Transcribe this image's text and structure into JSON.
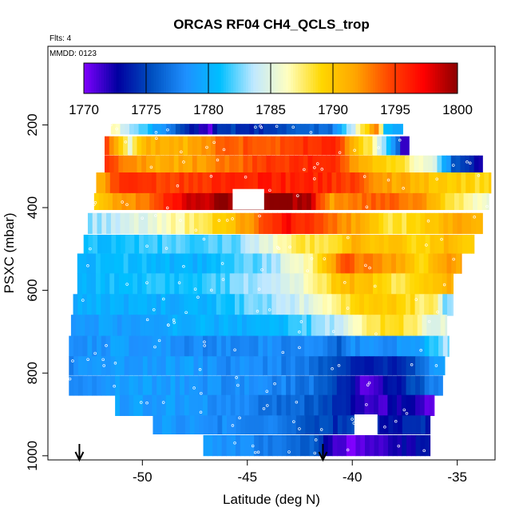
{
  "chart_data": {
    "type": "heatmap",
    "title": "ORCAS RF04 CH4_QCLS_trop",
    "annotations": [
      "Flts: 4",
      "MMDD: 0123"
    ],
    "xlabel": "Latitude (deg N)",
    "ylabel": "PSXC (mbar)",
    "xlim": [
      -54.5,
      -33.2
    ],
    "ylim": [
      1010,
      10
    ],
    "x_ticks": [
      -50,
      -45,
      -40,
      -35
    ],
    "y_ticks": [
      200,
      400,
      600,
      800,
      1000
    ],
    "colorbar": {
      "min": 1770,
      "max": 1800,
      "ticks": [
        1770,
        1775,
        1780,
        1785,
        1790,
        1795,
        1800
      ],
      "colors": [
        "#8000ff",
        "#0000a0",
        "#0050c0",
        "#1e90ff",
        "#00bfff",
        "#c0e8ff",
        "#ffffc0",
        "#ffd700",
        "#ffa500",
        "#ff4500",
        "#ff0000",
        "#8b0000"
      ]
    },
    "bands": [
      {
        "p": 210,
        "dp": 25,
        "x0": -51.5,
        "x1": -37.6,
        "segs": [
          [
            -51.5,
            1786
          ],
          [
            -51.3,
            1786
          ],
          [
            -46.8,
            1771
          ],
          [
            -46.2,
            1775
          ],
          [
            -44.5,
            1774
          ],
          [
            -41,
            1777
          ],
          [
            -39.2,
            1790
          ],
          [
            -38.8,
            1794
          ],
          [
            -38.4,
            1780
          ]
        ]
      },
      {
        "p": 250,
        "dp": 45,
        "x0": -51.8,
        "x1": -37.3,
        "segs": [
          [
            -51.8,
            1796
          ],
          [
            -50.6,
            1786
          ],
          [
            -49.8,
            1791
          ],
          [
            -48,
            1791
          ],
          [
            -46,
            1794
          ],
          [
            -44,
            1794
          ],
          [
            -41,
            1796
          ],
          [
            -39.2,
            1788
          ],
          [
            -38.8,
            1785
          ],
          [
            -38,
            1779
          ],
          [
            -37.6,
            1772
          ]
        ]
      },
      {
        "p": 295,
        "dp": 42,
        "x0": -51.8,
        "x1": -33.8,
        "segs": [
          [
            -51.8,
            1795
          ],
          [
            -49.5,
            1791
          ],
          [
            -47,
            1792
          ],
          [
            -44,
            1795
          ],
          [
            -41,
            1796
          ],
          [
            -39.5,
            1791
          ],
          [
            -37.5,
            1788
          ],
          [
            -36,
            1784
          ],
          [
            -35.2,
            1776
          ],
          [
            -34.2,
            1773
          ]
        ]
      },
      {
        "p": 340,
        "dp": 50,
        "x0": -52.2,
        "x1": -33.4,
        "segs": [
          [
            -52.2,
            1791
          ],
          [
            -51,
            1795
          ],
          [
            -48,
            1795
          ],
          [
            -45,
            1796
          ],
          [
            -42,
            1796
          ],
          [
            -40,
            1795
          ],
          [
            -38.5,
            1792
          ],
          [
            -36,
            1790
          ],
          [
            -34.5,
            1789
          ]
        ]
      },
      {
        "p": 385,
        "dp": 40,
        "x0": -52.3,
        "x1": -33.5,
        "segs": [
          [
            -52.3,
            1789
          ],
          [
            -51,
            1792
          ],
          [
            -49.3,
            1794
          ],
          [
            -48,
            1798
          ],
          [
            -46.7,
            1799
          ],
          [
            -45.5,
            1800
          ],
          [
            -44,
            1800
          ],
          [
            -42,
            1799
          ],
          [
            -41.6,
            1795
          ],
          [
            -41,
            1792
          ],
          [
            -39,
            1794
          ],
          [
            -37,
            1793
          ],
          [
            -35.5,
            1789
          ],
          [
            -34.2,
            1786
          ]
        ]
      },
      {
        "p": 438,
        "dp": 50,
        "x0": -52.6,
        "x1": -33.8,
        "segs": [
          [
            -52.6,
            1783
          ],
          [
            -51,
            1784
          ],
          [
            -49,
            1786
          ],
          [
            -47,
            1788
          ],
          [
            -45,
            1792
          ],
          [
            -44,
            1795
          ],
          [
            -43,
            1797
          ],
          [
            -41.5,
            1794
          ],
          [
            -39.5,
            1791
          ],
          [
            -38,
            1788
          ],
          [
            -36,
            1790
          ],
          [
            -35,
            1792
          ],
          [
            -34.2,
            1791
          ]
        ]
      },
      {
        "p": 488,
        "dp": 45,
        "x0": -52.8,
        "x1": -34.2,
        "segs": [
          [
            -52.8,
            1781
          ],
          [
            -51,
            1781
          ],
          [
            -48.5,
            1782
          ],
          [
            -46,
            1782
          ],
          [
            -44,
            1785
          ],
          [
            -42.5,
            1788
          ],
          [
            -41,
            1788
          ],
          [
            -40,
            1791
          ],
          [
            -38,
            1790
          ],
          [
            -36.5,
            1789
          ],
          [
            -35.5,
            1791
          ],
          [
            -34.8,
            1789
          ]
        ]
      },
      {
        "p": 535,
        "dp": 48,
        "x0": -53.1,
        "x1": -34.8,
        "segs": [
          [
            -53.1,
            1780
          ],
          [
            -51,
            1781
          ],
          [
            -48,
            1780
          ],
          [
            -46,
            1781
          ],
          [
            -44,
            1783
          ],
          [
            -42,
            1787
          ],
          [
            -40.5,
            1794
          ],
          [
            -38,
            1792
          ],
          [
            -36.5,
            1789
          ],
          [
            -35.5,
            1792
          ]
        ]
      },
      {
        "p": 585,
        "dp": 52,
        "x0": -53.1,
        "x1": -35.2,
        "segs": [
          [
            -53.1,
            1780
          ],
          [
            -51,
            1781
          ],
          [
            -48,
            1781
          ],
          [
            -46,
            1782
          ],
          [
            -44,
            1784
          ],
          [
            -42,
            1786
          ],
          [
            -40.8,
            1790
          ],
          [
            -39.5,
            1791
          ],
          [
            -38,
            1788
          ],
          [
            -36.8,
            1789
          ],
          [
            -35.8,
            1791
          ]
        ]
      },
      {
        "p": 635,
        "dp": 52,
        "x0": -53.3,
        "x1": -35.2,
        "segs": [
          [
            -53.3,
            1780
          ],
          [
            -51,
            1780
          ],
          [
            -48,
            1780
          ],
          [
            -46,
            1781
          ],
          [
            -44,
            1783
          ],
          [
            -42,
            1785
          ],
          [
            -40.5,
            1788
          ],
          [
            -39,
            1790
          ],
          [
            -37.5,
            1789
          ],
          [
            -36,
            1787
          ],
          [
            -35.6,
            1783
          ]
        ]
      },
      {
        "p": 685,
        "dp": 52,
        "x0": -53.4,
        "x1": -35.5,
        "segs": [
          [
            -53.4,
            1779
          ],
          [
            -51,
            1779
          ],
          [
            -48,
            1780
          ],
          [
            -46,
            1780
          ],
          [
            -44,
            1780
          ],
          [
            -42,
            1782
          ],
          [
            -40.5,
            1784
          ],
          [
            -39.5,
            1787
          ],
          [
            -38,
            1789
          ],
          [
            -37,
            1787
          ],
          [
            -36.2,
            1785
          ]
        ]
      },
      {
        "p": 735,
        "dp": 50,
        "x0": -53.5,
        "x1": -35.4,
        "segs": [
          [
            -53.5,
            1778
          ],
          [
            -51,
            1779
          ],
          [
            -48,
            1778
          ],
          [
            -46,
            1778
          ],
          [
            -44,
            1778
          ],
          [
            -42,
            1778
          ],
          [
            -40.5,
            1776
          ],
          [
            -40,
            1778
          ],
          [
            -38,
            1778
          ],
          [
            -36.5,
            1780
          ],
          [
            -35.8,
            1783
          ]
        ]
      },
      {
        "p": 782,
        "dp": 45,
        "x0": -53.5,
        "x1": -35.6,
        "segs": [
          [
            -53.5,
            1778
          ],
          [
            -51,
            1779
          ],
          [
            -48,
            1779
          ],
          [
            -46,
            1778
          ],
          [
            -44,
            1778
          ],
          [
            -42,
            1777
          ],
          [
            -40.3,
            1775
          ],
          [
            -39.5,
            1773
          ],
          [
            -38,
            1774
          ],
          [
            -37,
            1776
          ],
          [
            -36,
            1779
          ]
        ]
      },
      {
        "p": 830,
        "dp": 48,
        "x0": -53.5,
        "x1": -35.7,
        "segs": [
          [
            -53.5,
            1778
          ],
          [
            -51,
            1779
          ],
          [
            -48,
            1779
          ],
          [
            -46,
            1778
          ],
          [
            -44,
            1778
          ],
          [
            -42,
            1777
          ],
          [
            -40.3,
            1774
          ],
          [
            -39.6,
            1771
          ],
          [
            -38.2,
            1773
          ],
          [
            -37,
            1775
          ],
          [
            -36.2,
            1778
          ]
        ]
      },
      {
        "p": 878,
        "dp": 50,
        "x0": -51.3,
        "x1": -36.1,
        "segs": [
          [
            -51.3,
            1779
          ],
          [
            -48,
            1779
          ],
          [
            -46,
            1778
          ],
          [
            -44,
            1777
          ],
          [
            -42,
            1776
          ],
          [
            -40.5,
            1774
          ],
          [
            -39.5,
            1772
          ],
          [
            -39.0,
            1771
          ],
          [
            -37.5,
            1773
          ],
          [
            -36.6,
            1771
          ]
        ]
      },
      {
        "p": 925,
        "dp": 45,
        "x0": -49.5,
        "x1": -36.3,
        "segs": [
          [
            -49.5,
            1779
          ],
          [
            -47,
            1778
          ],
          [
            -45,
            1778
          ],
          [
            -43,
            1777
          ],
          [
            -41.5,
            1775
          ],
          [
            -40.3,
            1774
          ],
          [
            -39.5,
            1776
          ],
          [
            -38.5,
            1773
          ],
          [
            -37.2,
            1774
          ]
        ]
      },
      {
        "p": 975,
        "dp": 50,
        "x0": -47.1,
        "x1": -36.3,
        "segs": [
          [
            -47.1,
            1779
          ],
          [
            -45,
            1778
          ],
          [
            -43.5,
            1777
          ],
          [
            -42,
            1776
          ],
          [
            -41.4,
            1774
          ],
          [
            -41,
            1772
          ],
          [
            -40,
            1770
          ],
          [
            -38.5,
            1772
          ],
          [
            -37,
            1773
          ]
        ]
      }
    ],
    "gaps": [
      {
        "p0": 355,
        "p1": 405,
        "x0": -45.7,
        "x1": -44.2
      },
      {
        "p0": 900,
        "p1": 950,
        "x0": -39.9,
        "x1": -38.8
      }
    ],
    "markers_x": [
      -53.0,
      -41.4
    ]
  }
}
